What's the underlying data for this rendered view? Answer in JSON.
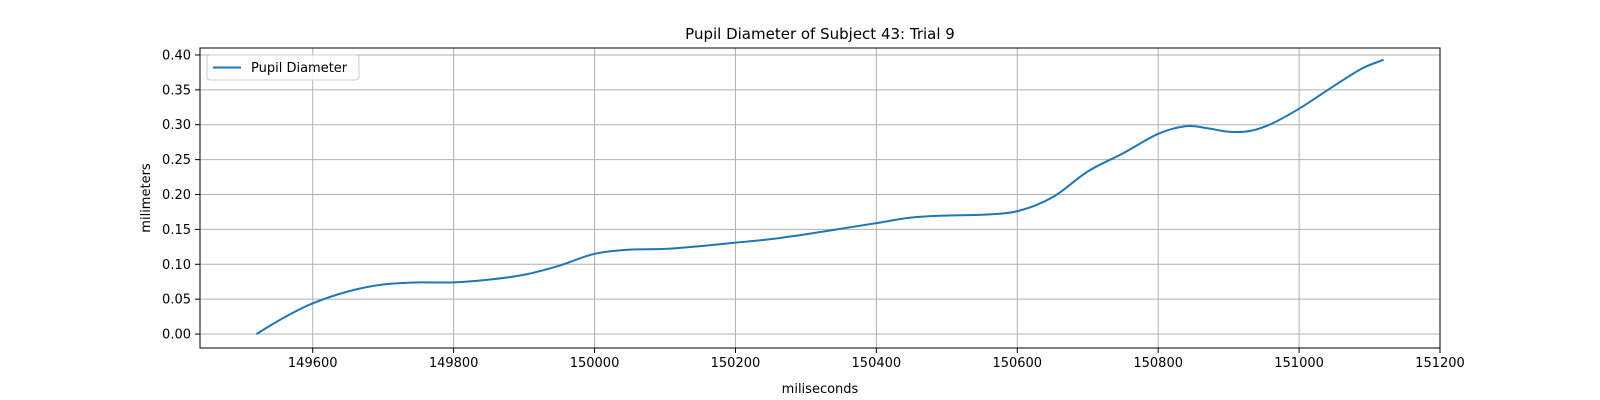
{
  "chart_data": {
    "type": "line",
    "title": "Pupil Diameter of Subject 43: Trial 9",
    "xlabel": "miliseconds",
    "ylabel": "milimeters",
    "xlim": [
      149440,
      151200
    ],
    "ylim": [
      -0.02,
      0.41
    ],
    "x_ticks": [
      149600,
      149800,
      150000,
      150200,
      150400,
      150600,
      150800,
      151000,
      151200
    ],
    "y_ticks": [
      0.0,
      0.05,
      0.1,
      0.15,
      0.2,
      0.25,
      0.3,
      0.35,
      0.4
    ],
    "y_tick_labels": [
      "0.00",
      "0.05",
      "0.10",
      "0.15",
      "0.20",
      "0.25",
      "0.30",
      "0.35",
      "0.40"
    ],
    "grid": true,
    "legend_position": "top-left",
    "series": [
      {
        "name": "Pupil Diameter",
        "color": "#1f77b4",
        "x": [
          149520,
          149560,
          149600,
          149650,
          149700,
          149750,
          149800,
          149850,
          149900,
          149950,
          150000,
          150050,
          150100,
          150150,
          150200,
          150250,
          150300,
          150350,
          150400,
          150450,
          150500,
          150550,
          150600,
          150650,
          150700,
          150750,
          150800,
          150840,
          150870,
          150900,
          150930,
          150960,
          151000,
          151050,
          151090,
          151120
        ],
        "y": [
          0.0,
          0.024,
          0.044,
          0.061,
          0.071,
          0.074,
          0.074,
          0.078,
          0.085,
          0.098,
          0.115,
          0.121,
          0.122,
          0.126,
          0.131,
          0.136,
          0.143,
          0.151,
          0.159,
          0.167,
          0.17,
          0.171,
          0.176,
          0.196,
          0.233,
          0.259,
          0.287,
          0.298,
          0.295,
          0.29,
          0.291,
          0.301,
          0.323,
          0.356,
          0.381,
          0.393
        ]
      }
    ]
  }
}
